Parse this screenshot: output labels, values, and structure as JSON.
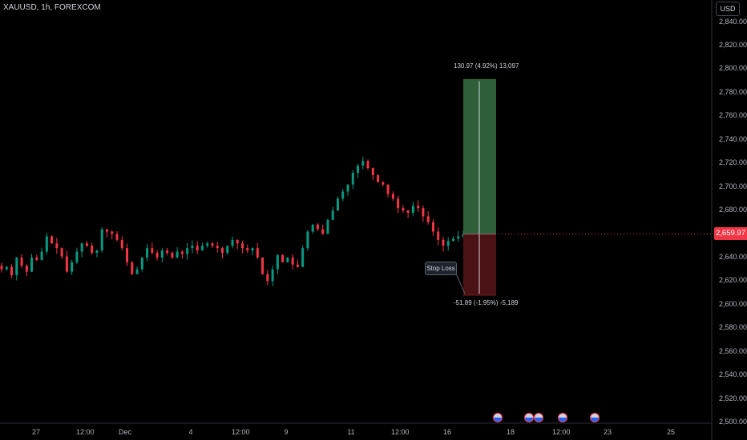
{
  "header": {
    "symbol": "XAUUSD, 1h, FOREXCOM",
    "currency": "USD"
  },
  "price_axis": {
    "ticks": [
      "2,840.00",
      "2,820.00",
      "2,800.00",
      "2,780.00",
      "2,760.00",
      "2,740.00",
      "2,720.00",
      "2,700.00",
      "2,680.00",
      "2,660.00",
      "2,640.00",
      "2,620.00",
      "2,600.00",
      "2,580.00",
      "2,560.00",
      "2,540.00",
      "2,520.00",
      "2,500.00"
    ],
    "current_price": "2,659.97"
  },
  "time_axis": {
    "ticks": [
      "27",
      "12:00",
      "Dec",
      "4",
      "12:00",
      "9",
      "11",
      "12:00",
      "16",
      "18",
      "12:00",
      "23",
      "25"
    ]
  },
  "position_tool": {
    "target_label": "130.97 (4.92%) 13,097",
    "stop_label": "-51.89 (-1.95%) -5,189",
    "stop_button": "Stop Loss",
    "entry_price": 2660,
    "target_price": 2791,
    "stop_price": 2608
  },
  "colors": {
    "up": "#089981",
    "down": "#f23645",
    "background": "#000000",
    "profit_zone": "#2e5e3a",
    "loss_zone": "#4a1214"
  },
  "events": {
    "icon": "us-flag-icon",
    "count": 5
  },
  "chart_data": {
    "type": "candlestick",
    "title": "XAUUSD, 1h, FOREXCOM",
    "ylim": [
      2500,
      2850
    ],
    "y_unit": "USD",
    "x_ticks": [
      "27",
      "12:00",
      "Dec",
      "4",
      "12:00",
      "9",
      "11",
      "12:00",
      "16"
    ],
    "close_path": [
      2630,
      2632,
      2625,
      2640,
      2633,
      2628,
      2640,
      2638,
      2645,
      2658,
      2652,
      2648,
      2641,
      2628,
      2636,
      2645,
      2652,
      2650,
      2644,
      2646,
      2664,
      2662,
      2660,
      2655,
      2648,
      2636,
      2626,
      2630,
      2640,
      2648,
      2644,
      2640,
      2646,
      2644,
      2640,
      2645,
      2643,
      2648,
      2650,
      2646,
      2650,
      2652,
      2650,
      2648,
      2644,
      2650,
      2655,
      2652,
      2648,
      2646,
      2648,
      2640,
      2626,
      2620,
      2630,
      2642,
      2636,
      2640,
      2634,
      2632,
      2648,
      2662,
      2668,
      2664,
      2660,
      2672,
      2680,
      2690,
      2696,
      2702,
      2712,
      2718,
      2722,
      2716,
      2710,
      2704,
      2702,
      2694,
      2690,
      2682,
      2680,
      2678,
      2684,
      2682,
      2675,
      2670,
      2662,
      2655,
      2650,
      2654,
      2656,
      2658,
      2659.97
    ]
  }
}
